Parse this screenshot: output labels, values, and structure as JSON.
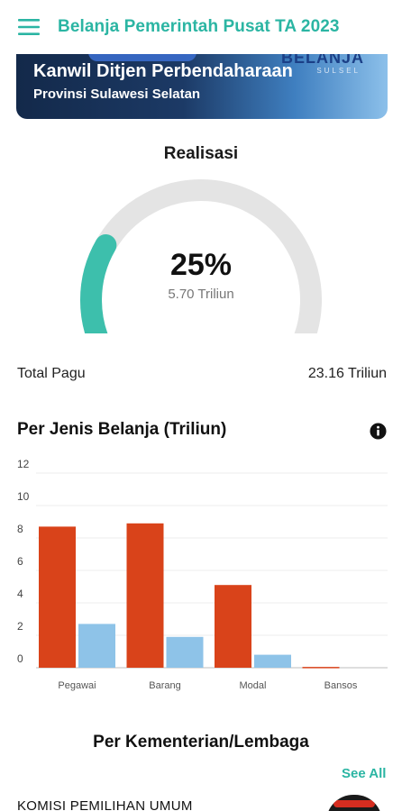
{
  "app_bar": {
    "title": "Belanja Pemerintah Pusat TA 2023",
    "menu_icon": "hamburger-menu-icon",
    "accent_color": "#2bb5a3"
  },
  "banner": {
    "title": "Kanwil Ditjen Perbendaharaan",
    "subtitle": "Provinsi Sulawesi Selatan",
    "logo_word": "BELANJA",
    "logo_sub": "SULSEL"
  },
  "realisasi": {
    "title": "Realisasi",
    "percent_label": "25%",
    "percent_value": 25,
    "value_label": "5.70 Triliun",
    "gauge_fill_color": "#3dbfac",
    "gauge_track_color": "#e4e4e4"
  },
  "pagu": {
    "label": "Total Pagu",
    "value": "23.16 Triliun"
  },
  "chart_section": {
    "title": "Per Jenis Belanja (Triliun)",
    "info_icon": "info-icon"
  },
  "chart_data": {
    "type": "bar",
    "categories": [
      "Pegawai",
      "Barang",
      "Modal",
      "Bansos"
    ],
    "series": [
      {
        "values": [
          8.7,
          8.9,
          5.1,
          0.05
        ],
        "color": "#d9431a"
      },
      {
        "values": [
          2.7,
          1.9,
          0.8,
          0.0
        ],
        "color": "#8ec3e8"
      }
    ],
    "y_ticks": [
      0,
      2,
      4,
      6,
      8,
      10,
      12
    ],
    "ylim": [
      0,
      12
    ],
    "grid": true,
    "legend": "none"
  },
  "kementerian": {
    "title": "Per Kementerian/Lembaga",
    "see_all_label": "See All",
    "items": [
      {
        "name": "KOMISI PEMILIHAN UMUM",
        "logo_icon": "kpu-logo-icon"
      }
    ]
  }
}
